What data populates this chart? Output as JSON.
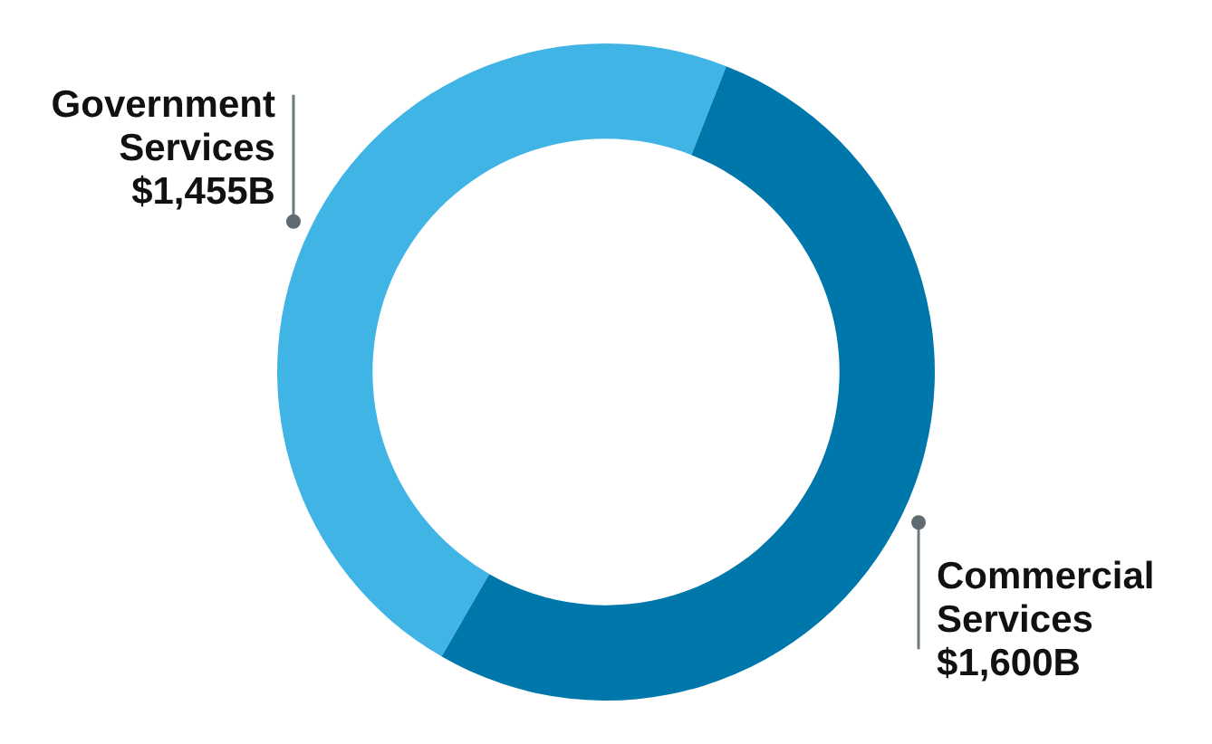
{
  "chart_data": {
    "type": "donut",
    "categories": [
      "Government Services",
      "Commercial Services"
    ],
    "values": [
      1455,
      1600
    ],
    "colors": [
      "#41b4e6",
      "#0077aa"
    ],
    "value_labels": [
      "$1,455B",
      "$1,600B"
    ],
    "legend": false
  }
}
